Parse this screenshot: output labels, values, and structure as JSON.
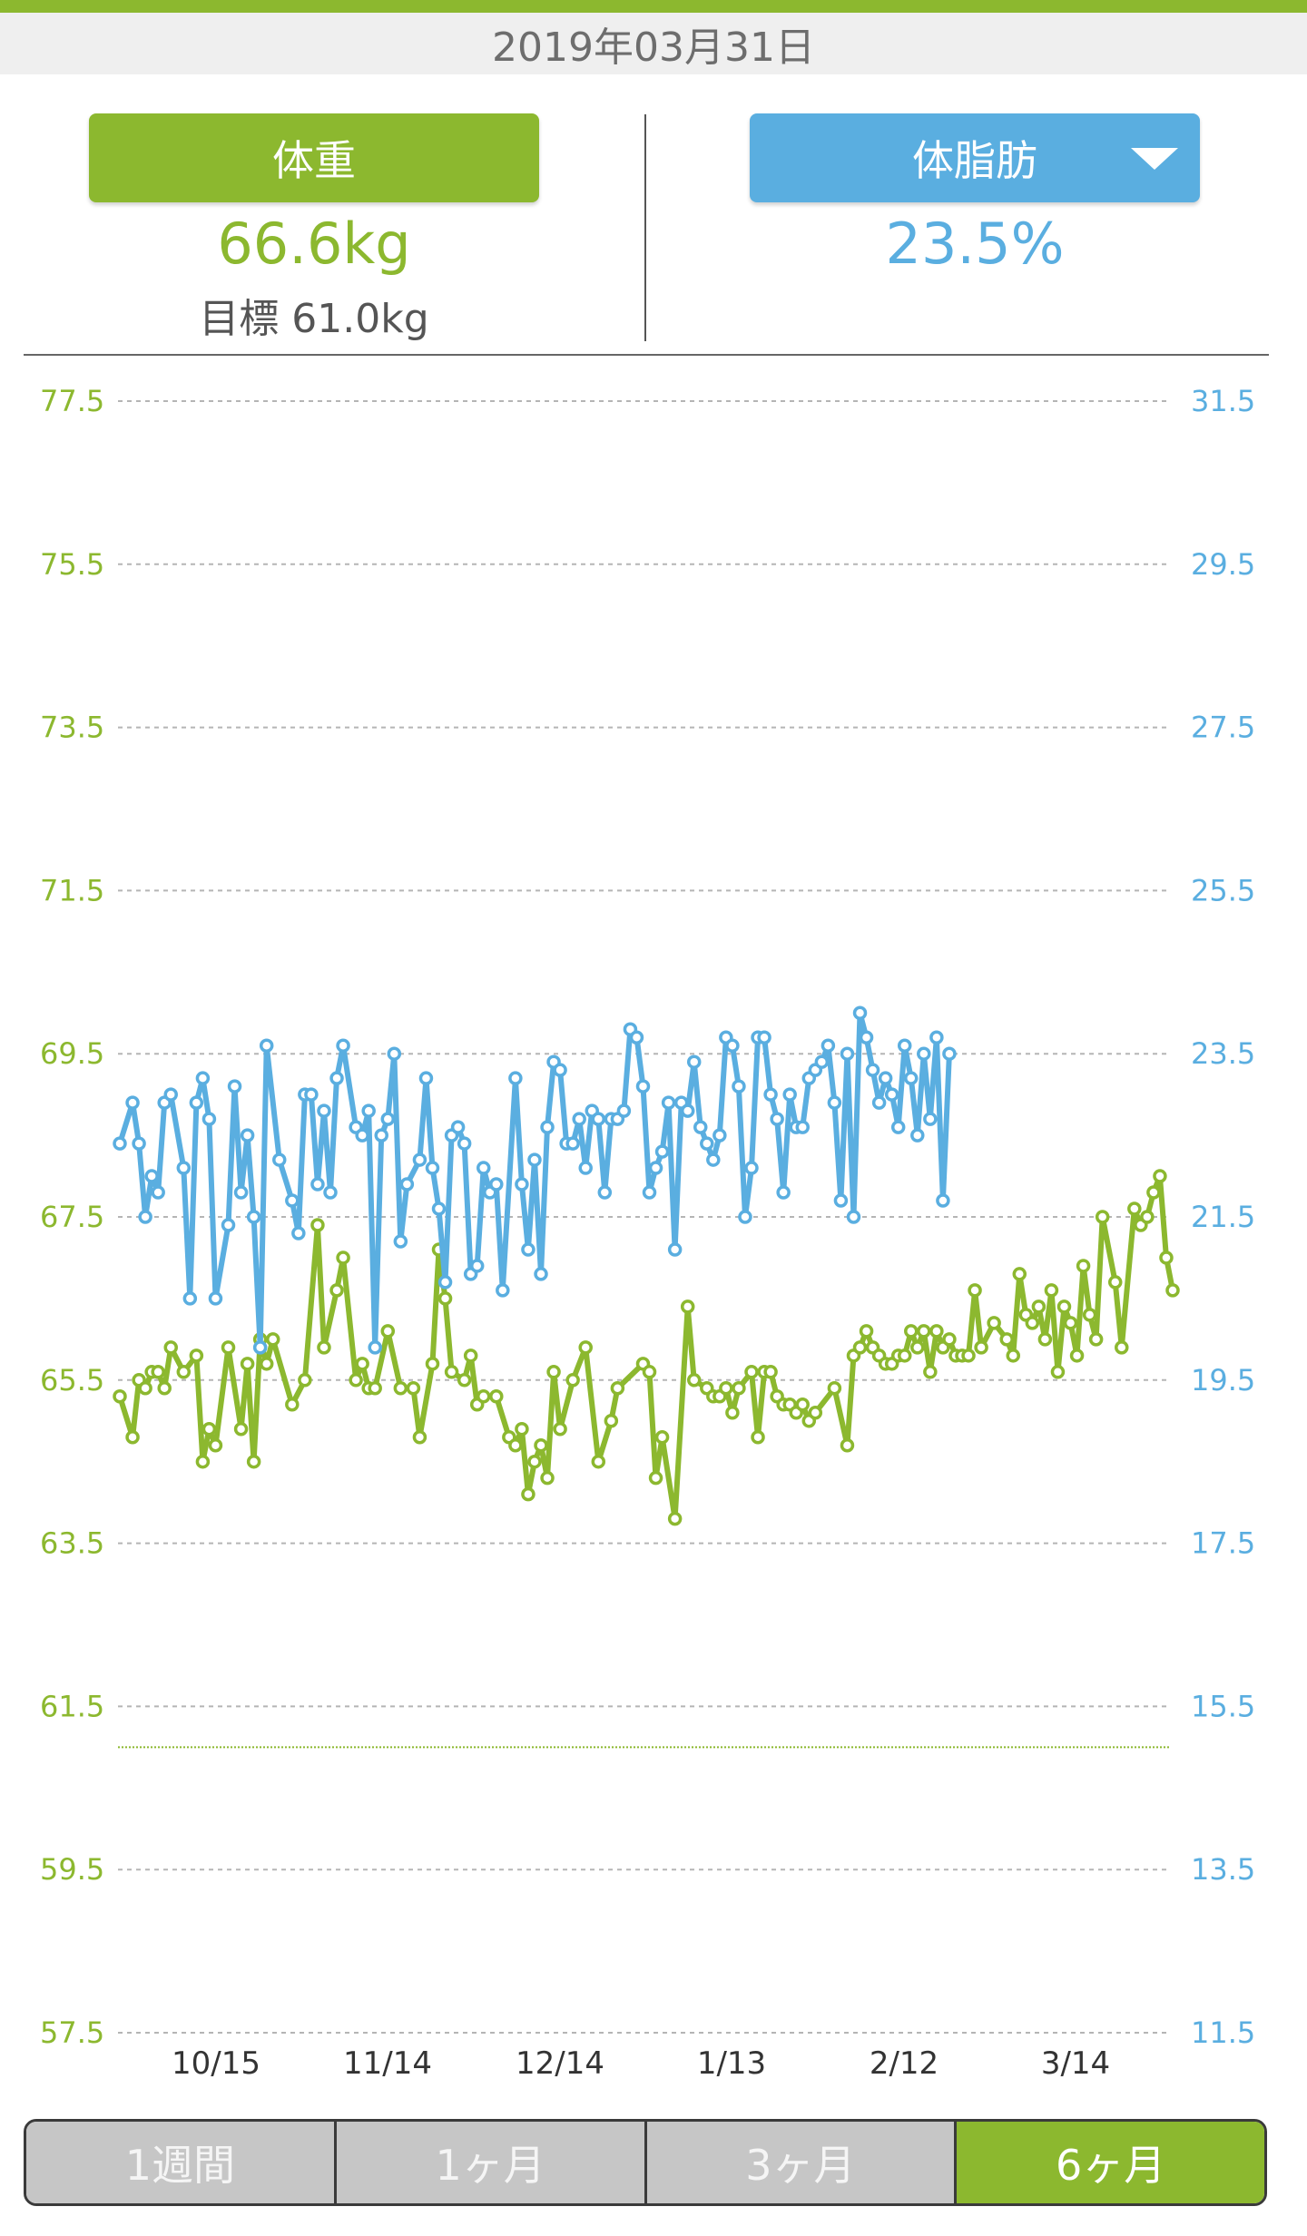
{
  "header": {
    "date": "2019年03月31日"
  },
  "weight": {
    "label": "体重",
    "value": "66.6kg",
    "goal": "目標 61.0kg"
  },
  "bodyfat": {
    "label": "体脂肪",
    "value": "23.5%"
  },
  "colors": {
    "weight": "#8cb82f",
    "bodyfat": "#5aaee0",
    "goal_line": "#8cb82f"
  },
  "periods": [
    {
      "label": "1週間",
      "active": false
    },
    {
      "label": "1ヶ月",
      "active": false
    },
    {
      "label": "3ヶ月",
      "active": false
    },
    {
      "label": "6ヶ月",
      "active": true
    }
  ],
  "chart_data": {
    "type": "line",
    "x_tick_labels": [
      "10/15",
      "11/14",
      "12/14",
      "1/13",
      "2/12",
      "3/14"
    ],
    "y_left": {
      "unit": "kg",
      "ticks": [
        "77.5",
        "75.5",
        "73.5",
        "71.5",
        "69.5",
        "67.5",
        "65.5",
        "63.5",
        "61.5",
        "59.5",
        "57.5"
      ],
      "ylim": [
        57.5,
        77.5
      ]
    },
    "y_right": {
      "unit": "%",
      "ticks": [
        "31.5",
        "29.5",
        "27.5",
        "25.5",
        "23.5",
        "21.5",
        "19.5",
        "17.5",
        "15.5",
        "13.5",
        "11.5"
      ],
      "ylim": [
        11.5,
        31.5
      ]
    },
    "goal_weight": 61.0,
    "grid": true,
    "series": [
      {
        "axis": "left",
        "points": [
          [
            0,
            65.3
          ],
          [
            2,
            64.8
          ],
          [
            3,
            65.5
          ],
          [
            4,
            65.4
          ],
          [
            5,
            65.6
          ],
          [
            6,
            65.6
          ],
          [
            7,
            65.4
          ],
          [
            8,
            65.9
          ],
          [
            10,
            65.6
          ],
          [
            12,
            65.8
          ],
          [
            13,
            64.5
          ],
          [
            14,
            64.9
          ],
          [
            15,
            64.7
          ],
          [
            17,
            65.9
          ],
          [
            19,
            64.9
          ],
          [
            20,
            65.7
          ],
          [
            21,
            64.5
          ],
          [
            22,
            66.0
          ],
          [
            23,
            65.7
          ],
          [
            24,
            66.0
          ],
          [
            27,
            65.2
          ],
          [
            29,
            65.5
          ],
          [
            31,
            67.4
          ],
          [
            32,
            65.9
          ],
          [
            34,
            66.6
          ],
          [
            35,
            67.0
          ],
          [
            37,
            65.5
          ],
          [
            38,
            65.7
          ],
          [
            39,
            65.4
          ],
          [
            40,
            65.4
          ],
          [
            42,
            66.1
          ],
          [
            44,
            65.4
          ],
          [
            46,
            65.4
          ],
          [
            47,
            64.8
          ],
          [
            49,
            65.7
          ],
          [
            50,
            67.1
          ],
          [
            51,
            66.5
          ],
          [
            52,
            65.6
          ],
          [
            54,
            65.5
          ],
          [
            55,
            65.8
          ],
          [
            56,
            65.2
          ],
          [
            57,
            65.3
          ],
          [
            59,
            65.3
          ],
          [
            61,
            64.8
          ],
          [
            62,
            64.7
          ],
          [
            63,
            64.9
          ],
          [
            64,
            64.1
          ],
          [
            65,
            64.5
          ],
          [
            66,
            64.7
          ],
          [
            67,
            64.3
          ],
          [
            68,
            65.6
          ],
          [
            69,
            64.9
          ],
          [
            71,
            65.5
          ],
          [
            73,
            65.9
          ],
          [
            75,
            64.5
          ],
          [
            77,
            65.0
          ],
          [
            78,
            65.4
          ],
          [
            82,
            65.7
          ],
          [
            83,
            65.6
          ],
          [
            84,
            64.3
          ],
          [
            85,
            64.8
          ],
          [
            87,
            63.8
          ],
          [
            89,
            66.4
          ],
          [
            90,
            65.5
          ],
          [
            92,
            65.4
          ],
          [
            93,
            65.3
          ],
          [
            94,
            65.3
          ],
          [
            95,
            65.4
          ],
          [
            96,
            65.1
          ],
          [
            97,
            65.4
          ],
          [
            99,
            65.6
          ],
          [
            100,
            64.8
          ],
          [
            101,
            65.6
          ],
          [
            102,
            65.6
          ],
          [
            103,
            65.3
          ],
          [
            104,
            65.2
          ],
          [
            105,
            65.2
          ],
          [
            106,
            65.1
          ],
          [
            107,
            65.2
          ],
          [
            108,
            65.0
          ],
          [
            109,
            65.1
          ],
          [
            112,
            65.4
          ],
          [
            114,
            64.7
          ],
          [
            115,
            65.8
          ],
          [
            116,
            65.9
          ],
          [
            117,
            66.1
          ],
          [
            118,
            65.9
          ],
          [
            119,
            65.8
          ],
          [
            120,
            65.7
          ],
          [
            121,
            65.7
          ],
          [
            122,
            65.8
          ],
          [
            123,
            65.8
          ],
          [
            124,
            66.1
          ],
          [
            125,
            65.9
          ],
          [
            126,
            66.1
          ],
          [
            127,
            65.6
          ],
          [
            128,
            66.1
          ],
          [
            129,
            65.9
          ],
          [
            130,
            66.0
          ],
          [
            131,
            65.8
          ],
          [
            132,
            65.8
          ],
          [
            133,
            65.8
          ],
          [
            134,
            66.6
          ],
          [
            135,
            65.9
          ],
          [
            137,
            66.2
          ],
          [
            139,
            66.0
          ],
          [
            140,
            65.8
          ],
          [
            141,
            66.8
          ],
          [
            142,
            66.3
          ],
          [
            143,
            66.2
          ],
          [
            144,
            66.4
          ],
          [
            145,
            66.0
          ],
          [
            146,
            66.6
          ],
          [
            147,
            65.6
          ],
          [
            148,
            66.4
          ],
          [
            149,
            66.2
          ],
          [
            150,
            65.8
          ],
          [
            151,
            66.9
          ],
          [
            152,
            66.3
          ],
          [
            153,
            66.0
          ],
          [
            154,
            67.5
          ],
          [
            156,
            66.7
          ],
          [
            157,
            65.9
          ],
          [
            159,
            67.6
          ],
          [
            160,
            67.4
          ],
          [
            161,
            67.5
          ],
          [
            162,
            67.8
          ],
          [
            163,
            68.0
          ],
          [
            164,
            67.0
          ],
          [
            165,
            66.6
          ]
        ]
      },
      {
        "axis": "right",
        "points": [
          [
            0,
            22.4
          ],
          [
            2,
            22.9
          ],
          [
            3,
            22.4
          ],
          [
            4,
            21.5
          ],
          [
            5,
            22.0
          ],
          [
            6,
            21.8
          ],
          [
            7,
            22.9
          ],
          [
            8,
            23.0
          ],
          [
            10,
            22.1
          ],
          [
            11,
            20.5
          ],
          [
            12,
            22.9
          ],
          [
            13,
            23.2
          ],
          [
            14,
            22.7
          ],
          [
            15,
            20.5
          ],
          [
            17,
            21.4
          ],
          [
            18,
            23.1
          ],
          [
            19,
            21.8
          ],
          [
            20,
            22.5
          ],
          [
            21,
            21.5
          ],
          [
            22,
            19.9
          ],
          [
            23,
            23.6
          ],
          [
            25,
            22.2
          ],
          [
            27,
            21.7
          ],
          [
            28,
            21.3
          ],
          [
            29,
            23.0
          ],
          [
            30,
            23.0
          ],
          [
            31,
            21.9
          ],
          [
            32,
            22.8
          ],
          [
            33,
            21.8
          ],
          [
            34,
            23.2
          ],
          [
            35,
            23.6
          ],
          [
            37,
            22.6
          ],
          [
            38,
            22.5
          ],
          [
            39,
            22.8
          ],
          [
            40,
            19.9
          ],
          [
            41,
            22.5
          ],
          [
            42,
            22.7
          ],
          [
            43,
            23.5
          ],
          [
            44,
            21.2
          ],
          [
            45,
            21.9
          ],
          [
            47,
            22.2
          ],
          [
            48,
            23.2
          ],
          [
            49,
            22.1
          ],
          [
            50,
            21.6
          ],
          [
            51,
            20.7
          ],
          [
            52,
            22.5
          ],
          [
            53,
            22.6
          ],
          [
            54,
            22.4
          ],
          [
            55,
            20.8
          ],
          [
            56,
            20.9
          ],
          [
            57,
            22.1
          ],
          [
            58,
            21.8
          ],
          [
            59,
            21.9
          ],
          [
            60,
            20.6
          ],
          [
            62,
            23.2
          ],
          [
            63,
            21.9
          ],
          [
            64,
            21.1
          ],
          [
            65,
            22.2
          ],
          [
            66,
            20.8
          ],
          [
            67,
            22.6
          ],
          [
            68,
            23.4
          ],
          [
            69,
            23.3
          ],
          [
            70,
            22.4
          ],
          [
            71,
            22.4
          ],
          [
            72,
            22.7
          ],
          [
            73,
            22.1
          ],
          [
            74,
            22.8
          ],
          [
            75,
            22.7
          ],
          [
            76,
            21.8
          ],
          [
            77,
            22.7
          ],
          [
            78,
            22.7
          ],
          [
            79,
            22.8
          ],
          [
            80,
            23.8
          ],
          [
            81,
            23.7
          ],
          [
            82,
            23.1
          ],
          [
            83,
            21.8
          ],
          [
            84,
            22.1
          ],
          [
            85,
            22.3
          ],
          [
            86,
            22.9
          ],
          [
            87,
            21.1
          ],
          [
            88,
            22.9
          ],
          [
            89,
            22.8
          ],
          [
            90,
            23.4
          ],
          [
            91,
            22.6
          ],
          [
            92,
            22.4
          ],
          [
            93,
            22.2
          ],
          [
            94,
            22.5
          ],
          [
            95,
            23.7
          ],
          [
            96,
            23.6
          ],
          [
            97,
            23.1
          ],
          [
            98,
            21.5
          ],
          [
            99,
            22.1
          ],
          [
            100,
            23.7
          ],
          [
            101,
            23.7
          ],
          [
            102,
            23.0
          ],
          [
            103,
            22.7
          ],
          [
            104,
            21.8
          ],
          [
            105,
            23.0
          ],
          [
            106,
            22.6
          ],
          [
            107,
            22.6
          ],
          [
            108,
            23.2
          ],
          [
            109,
            23.3
          ],
          [
            110,
            23.4
          ],
          [
            111,
            23.6
          ],
          [
            112,
            22.9
          ],
          [
            113,
            21.7
          ],
          [
            114,
            23.5
          ],
          [
            115,
            21.5
          ],
          [
            116,
            24.0
          ],
          [
            117,
            23.7
          ],
          [
            118,
            23.3
          ],
          [
            119,
            22.9
          ],
          [
            120,
            23.2
          ],
          [
            121,
            23.0
          ],
          [
            122,
            22.6
          ],
          [
            123,
            23.6
          ],
          [
            124,
            23.2
          ],
          [
            125,
            22.5
          ],
          [
            126,
            23.5
          ],
          [
            127,
            22.7
          ],
          [
            128,
            23.7
          ],
          [
            129,
            21.7
          ],
          [
            130,
            23.5
          ]
        ]
      }
    ]
  }
}
